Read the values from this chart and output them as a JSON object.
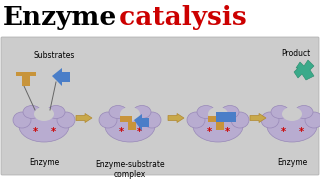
{
  "title_enzyme": "Enzyme",
  "title_catalysis": " catalysis",
  "title_enzyme_color": "#000000",
  "title_catalysis_color": "#cc0000",
  "title_fontsize": 19,
  "enzyme_color": "#b8acd0",
  "enzyme_edge": "#9888b8",
  "substrate_orange_color": "#c8943a",
  "substrate_blue_color": "#4a7ec8",
  "product_teal_color": "#3aaa8a",
  "star_color": "#cc0000",
  "arrow_color": "#c8a84a",
  "label_fontsize": 5.5,
  "white_color": "#ffffff",
  "frame_bg": "#cccccc",
  "frame_edge": "#aaaaaa",
  "line_color": "#666666",
  "substrates_label": "Substrates",
  "product_label": "Product",
  "enzyme_label": "Enzyme",
  "complex_label": "Enzyme-substrate\ncomplex"
}
